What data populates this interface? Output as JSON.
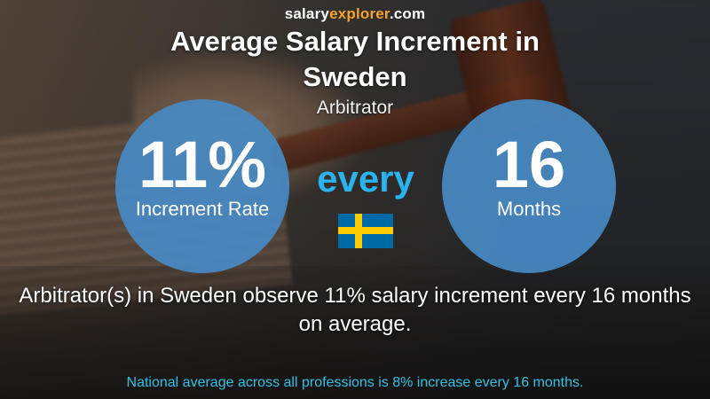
{
  "brand": {
    "part1": "salary",
    "part2": "explorer",
    "part3": ".com"
  },
  "title": "Average Salary Increment in Sweden",
  "subtitle": "Arbitrator",
  "left_stat": {
    "value": "11%",
    "label": "Increment Rate"
  },
  "connector": "every",
  "right_stat": {
    "value": "16",
    "label": "Months"
  },
  "flag": {
    "country": "Sweden",
    "colors": {
      "field": "#006aa7",
      "cross": "#fecc00"
    }
  },
  "description": "Arbitrator(s) in Sweden observe 11% salary increment every 16 months on average.",
  "footer": "National average across all professions is 8% increase every 16 months.",
  "colors": {
    "circle": "#488ac4",
    "accent_blue": "#2ab3ef",
    "brand_orange": "#f4a32b",
    "footer": "#32c1e4"
  }
}
